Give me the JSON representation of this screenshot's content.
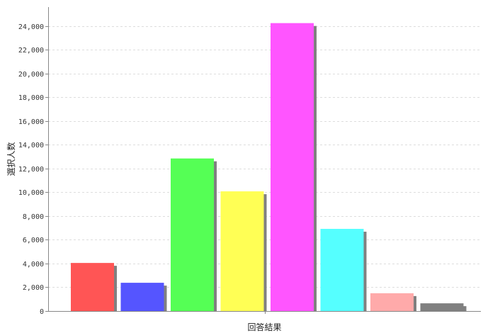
{
  "chart_data": {
    "type": "bar",
    "title": "",
    "xlabel": "回答結果",
    "ylabel": "選択人数",
    "ylim": [
      0,
      25600
    ],
    "yticks": [
      0,
      2000,
      4000,
      6000,
      8000,
      10000,
      12000,
      14000,
      16000,
      18000,
      20000,
      22000,
      24000
    ],
    "ytick_labels": [
      "0",
      "2,000",
      "4,000",
      "6,000",
      "8,000",
      "10,000",
      "12,000",
      "14,000",
      "16,000",
      "18,000",
      "20,000",
      "22,000",
      "24,000"
    ],
    "grid": true,
    "legend": "none",
    "bar_shadow": true,
    "values": [
      4050,
      2380,
      12850,
      10080,
      24250,
      6920,
      1500,
      650
    ],
    "colors": [
      "#ff5555",
      "#5555ff",
      "#55ff55",
      "#ffff55",
      "#ff55ff",
      "#55ffff",
      "#ffaaaa",
      "#808080"
    ],
    "shadow_color": "#808080"
  }
}
